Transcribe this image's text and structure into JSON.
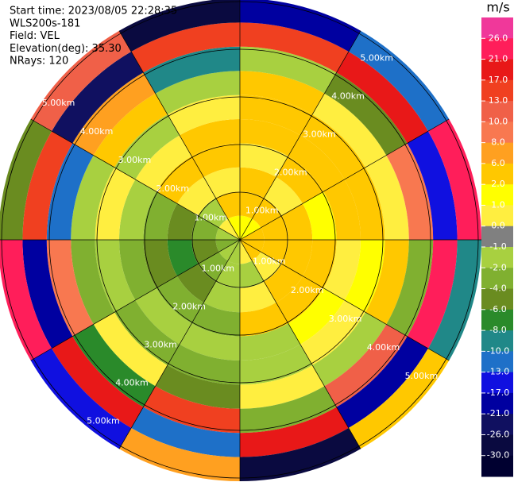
{
  "chart_data": {
    "type": "ppi",
    "info": [
      "Start time: 2023/08/05 22:28:35",
      "WLS200s-181",
      "Field: VEL",
      "Elevation(deg): 35.30",
      "NRays: 120"
    ],
    "unit": "m/s",
    "rlim": [
      0,
      5
    ],
    "rings": [
      {
        "value": 1,
        "label": "1.00km"
      },
      {
        "value": 2,
        "label": "2.00km"
      },
      {
        "value": 3,
        "label": "3.00km"
      },
      {
        "value": 4,
        "label": "4.00km"
      },
      {
        "value": 5,
        "label": "5.00km"
      }
    ],
    "values": [
      [
        1.5,
        2.5,
        2.5,
        0,
        2.5,
        2.5,
        3,
        -1.5,
        15,
        -20
      ],
      [
        1.5,
        2.5,
        0,
        2.5,
        2.5,
        3,
        0,
        -5,
        18,
        -12
      ],
      [
        3,
        2.5,
        2.5,
        1.5,
        3,
        2.5,
        0,
        8,
        -15,
        22
      ],
      [
        3,
        3,
        2.5,
        2.5,
        0,
        1.5,
        3,
        -3,
        24,
        -9
      ],
      [
        2.5,
        0,
        3,
        2.5,
        1.5,
        0,
        -1.5,
        11,
        -18,
        5
      ],
      [
        0,
        -1.5,
        0,
        2.5,
        -1.5,
        -1.5,
        0,
        -3,
        19,
        -27
      ],
      [
        -1.5,
        -1.5,
        -1.5,
        -3,
        -1.5,
        -3,
        -5,
        14,
        -11,
        7
      ],
      [
        -1.5,
        -3,
        -5,
        -3,
        -1.5,
        -3,
        0,
        -7,
        20,
        -15
      ],
      [
        -3,
        -5,
        -7,
        -5,
        -3,
        -1.5,
        -3,
        9,
        -19,
        25
      ],
      [
        -1.5,
        -3,
        -5,
        -3,
        -1.5,
        0,
        -1.5,
        -12,
        16,
        -5
      ],
      [
        0,
        -1.5,
        0,
        2.5,
        0,
        -1.5,
        2.5,
        6,
        -22,
        12
      ],
      [
        1.5,
        2.5,
        0,
        2.5,
        2.5,
        0,
        -1.5,
        -9,
        14,
        -28
      ]
    ],
    "colorbar_ticks": [
      {
        "value": 26,
        "label": "26.0"
      },
      {
        "value": 21,
        "label": "21.0"
      },
      {
        "value": 17,
        "label": "17.0"
      },
      {
        "value": 13,
        "label": "13.0"
      },
      {
        "value": 10,
        "label": "10.0"
      },
      {
        "value": 8,
        "label": "8.0"
      },
      {
        "value": 6,
        "label": "6.0"
      },
      {
        "value": 2,
        "label": "2.0"
      },
      {
        "value": 1,
        "label": "1.0"
      },
      {
        "value": 0,
        "label": "0.0"
      },
      {
        "value": -1,
        "label": "-1.0"
      },
      {
        "value": -2,
        "label": "-2.0"
      },
      {
        "value": -4,
        "label": "-4.0"
      },
      {
        "value": -6,
        "label": "-6.0"
      },
      {
        "value": -8,
        "label": "-8.0"
      },
      {
        "value": -10,
        "label": "-10.0"
      },
      {
        "value": -13,
        "label": "-13.0"
      },
      {
        "value": -17,
        "label": "-17.0"
      },
      {
        "value": -21,
        "label": "-21.0"
      },
      {
        "value": -26,
        "label": "-26.0"
      },
      {
        "value": -30,
        "label": "-30.0"
      }
    ],
    "colors": [
      "#f0389a",
      "#ff1e5a",
      "#e81818",
      "#f04020",
      "#f06048",
      "#f87850",
      "#ffa020",
      "#ffc800",
      "#ffff00",
      "#ffee40",
      "#808080",
      "#a8d040",
      "#80b030",
      "#6a8c20",
      "#2a8a2a",
      "#208888",
      "#1e70c8",
      "#1010e0",
      "#0000a0",
      "#101060",
      "#0a0a40",
      "#000030"
    ]
  }
}
